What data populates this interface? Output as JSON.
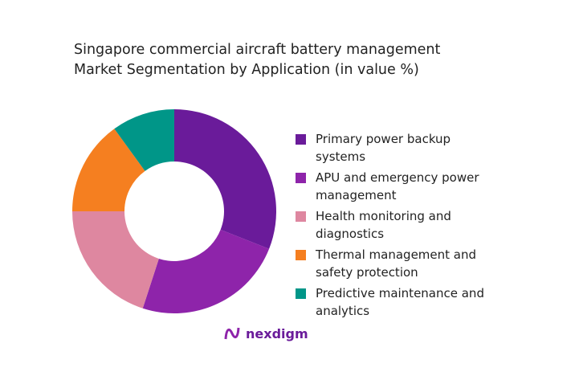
{
  "chart_data": {
    "type": "pie",
    "donut": true,
    "title": "Singapore commercial aircraft battery management Market Segmentation by Application (in value %)",
    "title_lines": [
      "Singapore commercial aircraft battery management",
      "Market Segmentation by Application (in value %)"
    ],
    "categories": [
      "Primary power backup systems",
      "APU and emergency power management",
      "Health monitoring and diagnostics",
      "Thermal management and safety protection",
      "Predictive maintenance and analytics"
    ],
    "values": [
      31,
      24,
      20,
      15,
      10
    ],
    "colors": [
      "#6a1b9a",
      "#8e24aa",
      "#de87a0",
      "#f57f20",
      "#009688"
    ],
    "legend_position": "right"
  },
  "brand": {
    "name": "nexdigm",
    "color": "#6a1b9a"
  }
}
